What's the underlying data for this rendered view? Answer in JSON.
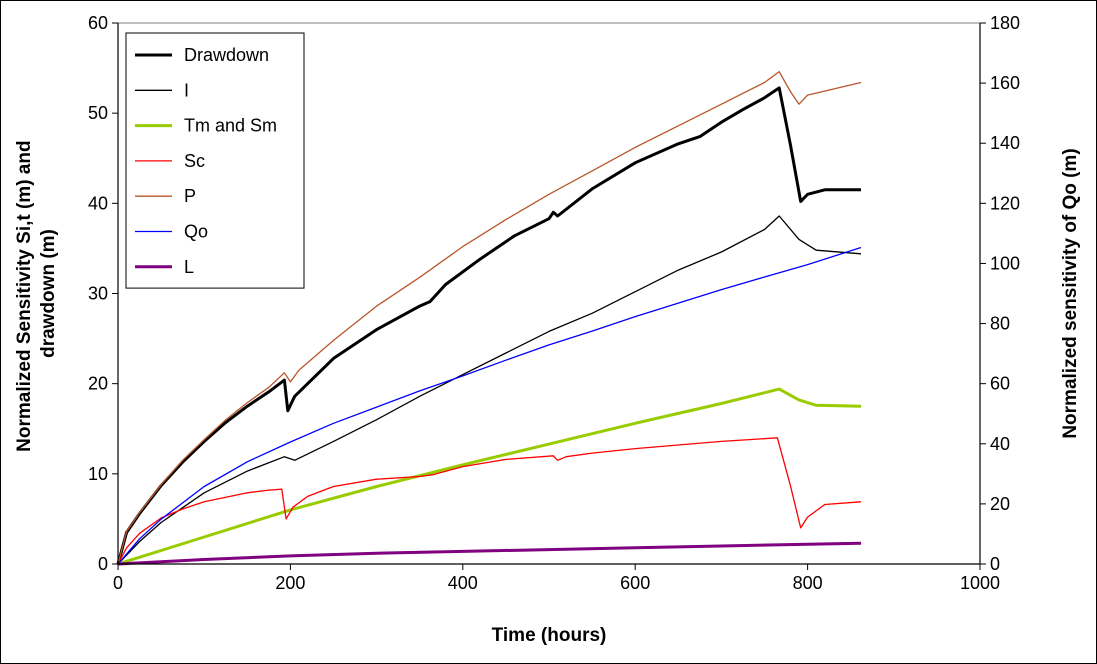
{
  "chart_data": {
    "type": "line",
    "title": "",
    "xlabel": "Time (hours)",
    "ylabel": [
      "Normalized Sensitivity Si,t (m) and",
      "drawdown (m)"
    ],
    "y2label": "Normalized sensitivity of Qo (m)",
    "xlim": [
      0,
      1000
    ],
    "ylim": [
      0,
      60
    ],
    "y2lim": [
      0,
      180
    ],
    "x_ticks": [
      "0",
      "200",
      "400",
      "600",
      "800",
      "1000"
    ],
    "y_ticks": [
      "0",
      "10",
      "20",
      "30",
      "40",
      "50",
      "60"
    ],
    "y2_ticks": [
      "0",
      "20",
      "40",
      "60",
      "80",
      "100",
      "120",
      "140",
      "160",
      "180"
    ],
    "grid": false,
    "legend_position": "top-left",
    "series": [
      {
        "name": "Drawdown",
        "color": "#000000",
        "width": 3,
        "axis": "left",
        "points": [
          [
            0,
            0
          ],
          [
            10,
            3.5
          ],
          [
            25,
            5.6
          ],
          [
            50,
            8.7
          ],
          [
            75,
            11.3
          ],
          [
            100,
            13.6
          ],
          [
            125,
            15.7
          ],
          [
            150,
            17.5
          ],
          [
            175,
            19.1
          ],
          [
            193,
            20.4
          ],
          [
            197,
            17.0
          ],
          [
            205,
            18.6
          ],
          [
            250,
            22.8
          ],
          [
            300,
            26.0
          ],
          [
            350,
            28.6
          ],
          [
            362,
            29.1
          ],
          [
            380,
            31.0
          ],
          [
            420,
            33.8
          ],
          [
            460,
            36.4
          ],
          [
            500,
            38.3
          ],
          [
            505,
            39.0
          ],
          [
            510,
            38.6
          ],
          [
            550,
            41.6
          ],
          [
            600,
            44.5
          ],
          [
            650,
            46.6
          ],
          [
            675,
            47.4
          ],
          [
            700,
            49.0
          ],
          [
            725,
            50.4
          ],
          [
            750,
            51.7
          ],
          [
            767,
            52.8
          ],
          [
            780,
            46.5
          ],
          [
            792,
            40.2
          ],
          [
            800,
            41.0
          ],
          [
            820,
            41.5
          ],
          [
            862,
            41.5
          ]
        ]
      },
      {
        "name": "I",
        "color": "#000000",
        "width": 1.3,
        "axis": "left",
        "points": [
          [
            0,
            0
          ],
          [
            25,
            2.5
          ],
          [
            50,
            4.6
          ],
          [
            100,
            7.9
          ],
          [
            150,
            10.3
          ],
          [
            193,
            11.9
          ],
          [
            205,
            11.5
          ],
          [
            250,
            13.6
          ],
          [
            300,
            16.0
          ],
          [
            350,
            18.6
          ],
          [
            400,
            21.0
          ],
          [
            450,
            23.4
          ],
          [
            500,
            25.8
          ],
          [
            550,
            27.8
          ],
          [
            600,
            30.2
          ],
          [
            650,
            32.6
          ],
          [
            700,
            34.6
          ],
          [
            750,
            37.1
          ],
          [
            767,
            38.6
          ],
          [
            790,
            36.0
          ],
          [
            810,
            34.8
          ],
          [
            862,
            34.4
          ]
        ]
      },
      {
        "name": "Tm and Sm",
        "color": "#99cc00",
        "width": 3,
        "axis": "left",
        "points": [
          [
            0,
            0
          ],
          [
            100,
            3.0
          ],
          [
            200,
            6.0
          ],
          [
            300,
            8.6
          ],
          [
            400,
            11.0
          ],
          [
            500,
            13.3
          ],
          [
            600,
            15.6
          ],
          [
            700,
            17.8
          ],
          [
            767,
            19.4
          ],
          [
            790,
            18.2
          ],
          [
            810,
            17.6
          ],
          [
            862,
            17.5
          ]
        ]
      },
      {
        "name": "Sc",
        "color": "#ff0000",
        "width": 1.3,
        "axis": "left",
        "points": [
          [
            0,
            0
          ],
          [
            10,
            1.8
          ],
          [
            25,
            3.4
          ],
          [
            50,
            5.1
          ],
          [
            75,
            6.1
          ],
          [
            100,
            6.9
          ],
          [
            125,
            7.4
          ],
          [
            150,
            7.9
          ],
          [
            175,
            8.2
          ],
          [
            190,
            8.3
          ],
          [
            195,
            5.0
          ],
          [
            203,
            6.3
          ],
          [
            220,
            7.5
          ],
          [
            250,
            8.6
          ],
          [
            300,
            9.4
          ],
          [
            350,
            9.7
          ],
          [
            365,
            9.9
          ],
          [
            400,
            10.8
          ],
          [
            450,
            11.6
          ],
          [
            505,
            12.0
          ],
          [
            510,
            11.5
          ],
          [
            520,
            11.9
          ],
          [
            550,
            12.3
          ],
          [
            600,
            12.8
          ],
          [
            650,
            13.2
          ],
          [
            700,
            13.6
          ],
          [
            765,
            14.0
          ],
          [
            780,
            8.7
          ],
          [
            792,
            4.0
          ],
          [
            800,
            5.2
          ],
          [
            820,
            6.6
          ],
          [
            862,
            6.9
          ]
        ]
      },
      {
        "name": "P",
        "color": "#b8562a",
        "width": 1.3,
        "axis": "left",
        "points": [
          [
            0,
            0
          ],
          [
            10,
            3.6
          ],
          [
            25,
            5.7
          ],
          [
            50,
            8.8
          ],
          [
            75,
            11.5
          ],
          [
            100,
            13.8
          ],
          [
            125,
            16.0
          ],
          [
            150,
            17.9
          ],
          [
            175,
            19.6
          ],
          [
            193,
            21.2
          ],
          [
            200,
            20.2
          ],
          [
            210,
            21.5
          ],
          [
            250,
            24.8
          ],
          [
            300,
            28.6
          ],
          [
            350,
            31.8
          ],
          [
            400,
            35.2
          ],
          [
            450,
            38.2
          ],
          [
            500,
            41.0
          ],
          [
            550,
            43.6
          ],
          [
            600,
            46.2
          ],
          [
            650,
            48.6
          ],
          [
            700,
            51.0
          ],
          [
            750,
            53.4
          ],
          [
            767,
            54.6
          ],
          [
            780,
            52.4
          ],
          [
            790,
            51.0
          ],
          [
            800,
            52.0
          ],
          [
            862,
            53.4
          ]
        ]
      },
      {
        "name": "Qo",
        "color": "#0000ff",
        "width": 1.3,
        "axis": "right",
        "points": [
          [
            0,
            0
          ],
          [
            25,
            8.4
          ],
          [
            50,
            14.9
          ],
          [
            100,
            25.8
          ],
          [
            150,
            34.0
          ],
          [
            200,
            40.6
          ],
          [
            250,
            46.8
          ],
          [
            300,
            52.2
          ],
          [
            350,
            57.6
          ],
          [
            400,
            62.6
          ],
          [
            450,
            67.8
          ],
          [
            500,
            72.9
          ],
          [
            550,
            77.5
          ],
          [
            600,
            82.3
          ],
          [
            650,
            86.8
          ],
          [
            700,
            91.3
          ],
          [
            750,
            95.5
          ],
          [
            800,
            99.6
          ],
          [
            862,
            105.3
          ]
        ]
      },
      {
        "name": "L",
        "color": "#800080",
        "width": 3,
        "axis": "left",
        "points": [
          [
            0,
            0
          ],
          [
            100,
            0.5
          ],
          [
            200,
            0.9
          ],
          [
            300,
            1.2
          ],
          [
            400,
            1.4
          ],
          [
            500,
            1.6
          ],
          [
            600,
            1.8
          ],
          [
            700,
            2.0
          ],
          [
            800,
            2.2
          ],
          [
            862,
            2.3
          ]
        ]
      }
    ]
  }
}
